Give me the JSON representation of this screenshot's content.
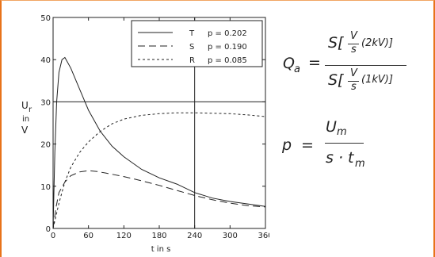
{
  "chart_data": {
    "type": "line",
    "title": "",
    "xlabel": "t in s",
    "ylabel": [
      "U",
      "r",
      "in",
      "V"
    ],
    "xlim": [
      0,
      360
    ],
    "ylim": [
      0,
      50
    ],
    "x_ticks": [
      "0",
      "60",
      "120",
      "180",
      "240",
      "300",
      "360"
    ],
    "y_ticks": [
      "0",
      "10",
      "20",
      "30",
      "40",
      "50"
    ],
    "reference_lines": {
      "horizontal_y": 30,
      "vertical_x": 240
    },
    "grid": false,
    "legend_position": "top-right",
    "series": [
      {
        "name": "T",
        "style": "solid",
        "p_label": "p = 0.202",
        "points": [
          [
            0,
            0
          ],
          [
            3,
            18
          ],
          [
            6,
            30
          ],
          [
            10,
            37
          ],
          [
            15,
            40
          ],
          [
            20,
            40.5
          ],
          [
            30,
            38
          ],
          [
            45,
            33
          ],
          [
            60,
            28
          ],
          [
            80,
            23
          ],
          [
            100,
            19.5
          ],
          [
            120,
            17
          ],
          [
            150,
            14
          ],
          [
            180,
            12
          ],
          [
            210,
            10.5
          ],
          [
            240,
            8.5
          ],
          [
            270,
            7.2
          ],
          [
            300,
            6.4
          ],
          [
            330,
            5.8
          ],
          [
            360,
            5.2
          ]
        ]
      },
      {
        "name": "S",
        "style": "long-dash",
        "p_label": "p = 0.190",
        "points": [
          [
            0,
            0
          ],
          [
            5,
            5
          ],
          [
            10,
            8.5
          ],
          [
            20,
            11
          ],
          [
            30,
            12.5
          ],
          [
            45,
            13.4
          ],
          [
            60,
            13.7
          ],
          [
            75,
            13.5
          ],
          [
            90,
            13.1
          ],
          [
            120,
            12.3
          ],
          [
            150,
            11.3
          ],
          [
            180,
            10.2
          ],
          [
            210,
            9
          ],
          [
            240,
            7.8
          ],
          [
            270,
            6.8
          ],
          [
            300,
            6
          ],
          [
            330,
            5.4
          ],
          [
            360,
            5.1
          ]
        ]
      },
      {
        "name": "R",
        "style": "short-dash",
        "p_label": "p = 0.085",
        "points": [
          [
            0,
            0
          ],
          [
            10,
            6
          ],
          [
            20,
            11
          ],
          [
            30,
            14.5
          ],
          [
            45,
            18
          ],
          [
            60,
            20.5
          ],
          [
            80,
            23
          ],
          [
            100,
            24.8
          ],
          [
            120,
            25.9
          ],
          [
            150,
            26.8
          ],
          [
            180,
            27.2
          ],
          [
            210,
            27.4
          ],
          [
            240,
            27.4
          ],
          [
            270,
            27.3
          ],
          [
            300,
            27.2
          ],
          [
            330,
            26.9
          ],
          [
            360,
            26.5
          ]
        ]
      }
    ]
  },
  "formulas": {
    "q": {
      "lhs": "Q",
      "lhs_sub": "a",
      "eq": "=",
      "num_pre": "S[",
      "num_frac_top": "V",
      "num_frac_bot": "s",
      "num_post": "(2kV)]",
      "den_pre": "S[",
      "den_frac_top": "V",
      "den_frac_bot": "s",
      "den_post": "(1kV)]"
    },
    "p": {
      "lhs": "p",
      "eq": "=",
      "num": "U",
      "num_sub": "m",
      "den": "s · t",
      "den_sub": "m"
    }
  }
}
